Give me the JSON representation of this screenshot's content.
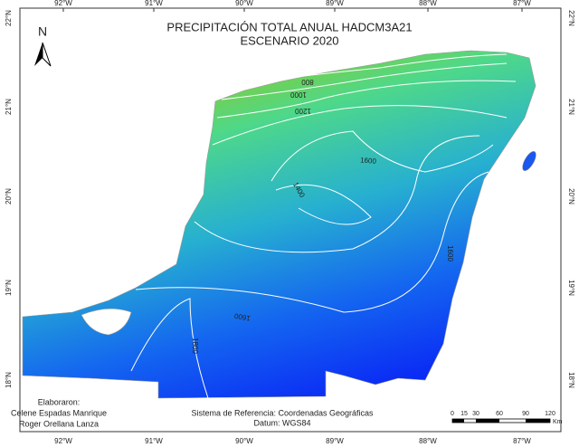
{
  "title": [
    "PRECIPITACIÓN TOTAL  ANUAL HADCM3A21",
    "ESCENARIO 2020"
  ],
  "north": "N",
  "longitudes": [
    "92°W",
    "91°W",
    "90°W",
    "89°W",
    "88°W",
    "87°W"
  ],
  "latitudes": [
    "22°N",
    "21°N",
    "20°N",
    "19°N",
    "18°N"
  ],
  "contour_labels": [
    "800",
    "1000",
    "1200",
    "1400",
    "1600",
    "1600",
    "1600",
    "1800"
  ],
  "credits": [
    "Elaboraron:",
    "Celene Espadas Manrique",
    "Roger Orellana Lanza"
  ],
  "reference": [
    "Sistema de Referencia: Coordenadas Geográficas",
    "Datum: WGS84"
  ],
  "scale_bar": {
    "labels": [
      "0",
      "15",
      "30",
      "60",
      "90",
      "120"
    ],
    "unit": "Km"
  }
}
